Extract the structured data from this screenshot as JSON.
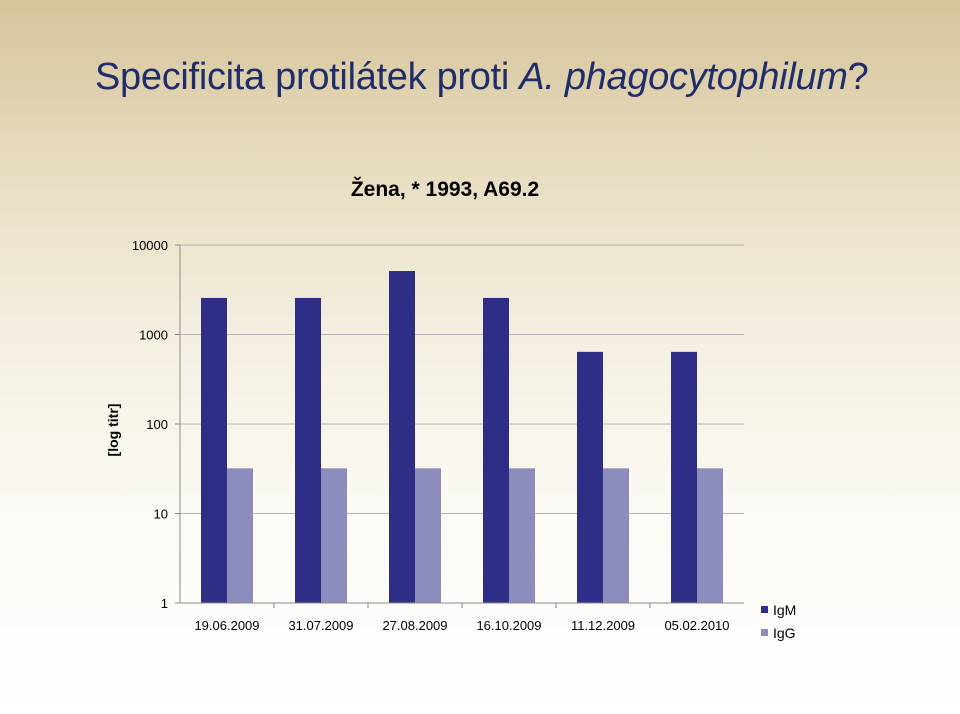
{
  "slide": {
    "title_normal": "Specificita protilátek proti ",
    "title_italic": "A. phagocytophilum",
    "title_end": "?"
  },
  "chart_data": {
    "type": "bar",
    "title": "Žena, * 1993, A69.2",
    "ylabel": "[log titr]",
    "xlabel": "",
    "yscale": "log",
    "ylim": [
      1,
      10000
    ],
    "yticks": [
      "1",
      "10",
      "100",
      "1000",
      "10000"
    ],
    "categories": [
      "19.06.2009",
      "31.07.2009",
      "27.08.2009",
      "16.10.2009",
      "11.12.2009",
      "05.02.2010"
    ],
    "series": [
      {
        "name": "IgM",
        "color": "#2e2e86",
        "values": [
          2560,
          2560,
          5120,
          2560,
          640,
          640
        ]
      },
      {
        "name": "IgG",
        "color": "#8d8dbd",
        "values": [
          32,
          32,
          32,
          32,
          32,
          32
        ]
      }
    ],
    "grid": true,
    "legend": "right"
  }
}
